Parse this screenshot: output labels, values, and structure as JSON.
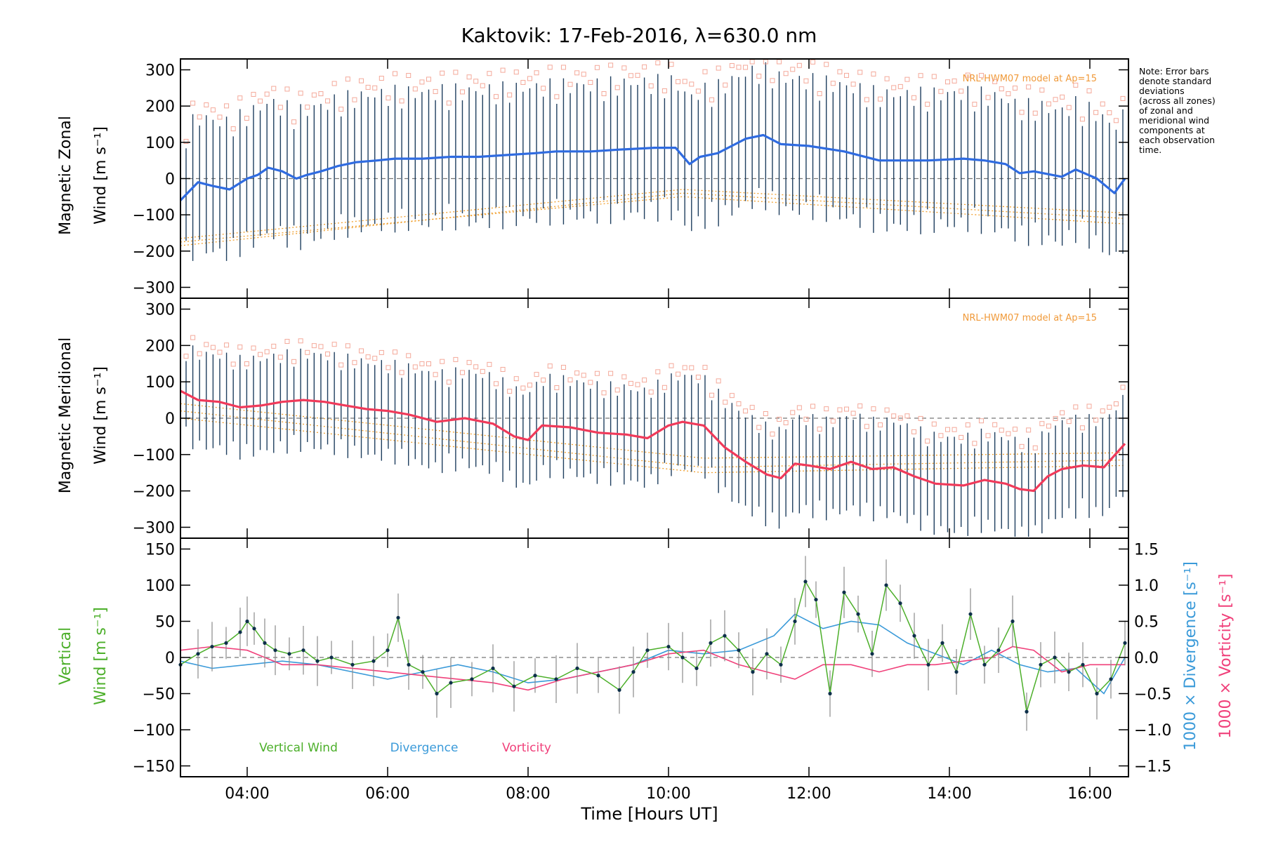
{
  "title": "Kaktovik: 17-Feb-2016, λ=630.0 nm",
  "note": [
    "Note: Error bars",
    "denote standard",
    "deviations",
    "(across all zones)",
    "of zonal and",
    "meridional wind",
    "components at",
    "each observation",
    "time."
  ],
  "model_label": "NRL-HWM07 model at Ap=15",
  "x_axis": {
    "label": "Time [Hours UT]",
    "range_hours": [
      3.05,
      16.55
    ],
    "ticks": [
      4,
      6,
      8,
      10,
      12,
      14,
      16
    ],
    "tick_labels": [
      "04:00",
      "06:00",
      "08:00",
      "10:00",
      "12:00",
      "14:00",
      "16:00"
    ]
  },
  "chart_data": [
    {
      "type": "line",
      "panel": "zonal",
      "ylabel": [
        "Magnetic Zonal",
        "Wind [m s⁻¹]"
      ],
      "ylim": [
        -330,
        330
      ],
      "yticks": [
        -300,
        -200,
        -100,
        0,
        100,
        200,
        300
      ],
      "line_color": "#2f6be0",
      "annotation": "NRL-HWM07 model at Ap=15",
      "x": [
        3.05,
        3.3,
        3.5,
        3.75,
        4.0,
        4.15,
        4.3,
        4.5,
        4.7,
        4.85,
        5.05,
        5.3,
        5.55,
        5.85,
        6.1,
        6.5,
        6.9,
        7.3,
        7.7,
        8.1,
        8.4,
        8.9,
        9.3,
        9.8,
        10.1,
        10.3,
        10.45,
        10.7,
        10.9,
        11.1,
        11.35,
        11.6,
        12.0,
        12.5,
        13.0,
        13.3,
        13.7,
        14.2,
        14.5,
        14.8,
        15.0,
        15.2,
        15.6,
        15.8,
        16.1,
        16.35,
        16.5
      ],
      "y": [
        -60,
        -10,
        -20,
        -30,
        0,
        10,
        30,
        20,
        0,
        10,
        20,
        35,
        45,
        50,
        55,
        55,
        60,
        60,
        65,
        70,
        75,
        75,
        80,
        85,
        85,
        40,
        60,
        70,
        90,
        110,
        120,
        95,
        90,
        75,
        50,
        50,
        50,
        55,
        50,
        40,
        15,
        20,
        5,
        25,
        0,
        -40,
        0
      ],
      "error": 170,
      "model": [
        {
          "x": [
            3.05,
            10.2,
            16.5
          ],
          "y": [
            -185,
            -40,
            -110
          ]
        },
        {
          "x": [
            3.05,
            10.2,
            16.5
          ],
          "y": [
            -175,
            -50,
            -125
          ]
        },
        {
          "x": [
            3.05,
            10.2,
            16.5
          ],
          "y": [
            -165,
            -30,
            -95
          ]
        }
      ]
    },
    {
      "type": "line",
      "panel": "meridional",
      "ylabel": [
        "Magnetic Meridional",
        "Wind [m s⁻¹]"
      ],
      "ylim": [
        -330,
        330
      ],
      "yticks": [
        -300,
        -200,
        -100,
        0,
        100,
        200,
        300
      ],
      "line_color": "#f03a5a",
      "annotation": "NRL-HWM07 model at Ap=15",
      "x": [
        3.05,
        3.3,
        3.6,
        3.9,
        4.2,
        4.5,
        4.8,
        5.1,
        5.4,
        5.7,
        6.0,
        6.3,
        6.7,
        7.1,
        7.5,
        7.8,
        8.0,
        8.2,
        8.6,
        9.0,
        9.4,
        9.7,
        10.0,
        10.2,
        10.5,
        10.8,
        11.1,
        11.4,
        11.6,
        11.8,
        12.0,
        12.3,
        12.6,
        12.9,
        13.2,
        13.5,
        13.8,
        14.2,
        14.5,
        14.8,
        15.0,
        15.2,
        15.4,
        15.6,
        15.9,
        16.2,
        16.5
      ],
      "y": [
        75,
        50,
        45,
        30,
        35,
        45,
        50,
        45,
        35,
        25,
        20,
        10,
        -10,
        0,
        -15,
        -50,
        -60,
        -20,
        -25,
        -40,
        -45,
        -55,
        -20,
        -10,
        -20,
        -80,
        -120,
        -155,
        -165,
        -125,
        -130,
        -140,
        -120,
        -140,
        -135,
        -160,
        -180,
        -185,
        -170,
        -180,
        -195,
        -200,
        -160,
        -140,
        -130,
        -135,
        -70
      ],
      "error": 120,
      "model": [
        {
          "x": [
            3.05,
            10.5,
            16.5
          ],
          "y": [
            40,
            -110,
            -95
          ]
        },
        {
          "x": [
            3.05,
            10.5,
            16.5
          ],
          "y": [
            20,
            -135,
            -115
          ]
        },
        {
          "x": [
            3.05,
            10.5,
            16.5
          ],
          "y": [
            0,
            -150,
            -130
          ]
        }
      ]
    },
    {
      "type": "line",
      "panel": "vertical",
      "ylabel": [
        "Vertical",
        "Wind [m s⁻¹]"
      ],
      "ylim": [
        -165,
        165
      ],
      "yticks": [
        -150,
        -100,
        -50,
        0,
        50,
        100,
        150
      ],
      "right_axis": {
        "ylabel_divergence": "1000 × Divergence [s⁻¹]",
        "ylabel_vorticity": "1000 × Vorticity [s⁻¹]",
        "ylim": [
          -1.65,
          1.65
        ],
        "ticks": [
          -1.5,
          -1.0,
          -0.5,
          0.0,
          0.5,
          1.0,
          1.5
        ],
        "tick_labels": [
          "−1.5",
          "−1.0",
          "−0.5",
          "0.0",
          "0.5",
          "1.0",
          "1.5"
        ]
      },
      "legend": [
        {
          "label": "Vertical Wind",
          "color": "#4caf2a"
        },
        {
          "label": "Divergence",
          "color": "#3a9ad9"
        },
        {
          "label": "Vorticity",
          "color": "#f0407a"
        }
      ],
      "series": [
        {
          "name": "Vertical Wind",
          "color": "#4caf2a",
          "x": [
            3.05,
            3.3,
            3.5,
            3.7,
            3.9,
            4.0,
            4.1,
            4.25,
            4.4,
            4.6,
            4.8,
            5.0,
            5.2,
            5.5,
            5.8,
            6.0,
            6.15,
            6.3,
            6.5,
            6.7,
            6.9,
            7.2,
            7.5,
            7.8,
            8.1,
            8.4,
            8.7,
            9.0,
            9.3,
            9.5,
            9.7,
            10.0,
            10.2,
            10.4,
            10.6,
            10.8,
            11.0,
            11.2,
            11.4,
            11.6,
            11.8,
            11.95,
            12.1,
            12.3,
            12.5,
            12.7,
            12.9,
            13.1,
            13.3,
            13.5,
            13.7,
            13.9,
            14.1,
            14.3,
            14.5,
            14.7,
            14.9,
            15.1,
            15.3,
            15.5,
            15.7,
            15.9,
            16.1,
            16.3,
            16.5
          ],
          "y": [
            -10,
            5,
            15,
            20,
            35,
            50,
            40,
            20,
            10,
            5,
            10,
            -5,
            0,
            -10,
            -5,
            10,
            55,
            -10,
            -20,
            -50,
            -35,
            -30,
            -15,
            -40,
            -25,
            -30,
            -15,
            -25,
            -45,
            -20,
            10,
            15,
            0,
            -15,
            20,
            30,
            10,
            -20,
            5,
            -10,
            50,
            105,
            80,
            -50,
            90,
            60,
            5,
            100,
            75,
            30,
            -10,
            20,
            -20,
            60,
            -10,
            10,
            50,
            -75,
            -10,
            0,
            -20,
            -10,
            -50,
            -30,
            20
          ]
        },
        {
          "name": "Divergence",
          "color": "#3a9ad9",
          "x": [
            3.05,
            3.5,
            4.0,
            4.5,
            5.0,
            5.5,
            6.0,
            6.5,
            7.0,
            7.5,
            8.0,
            8.5,
            9.0,
            9.5,
            10.0,
            10.5,
            11.0,
            11.5,
            11.8,
            12.2,
            12.6,
            13.0,
            13.4,
            13.8,
            14.2,
            14.6,
            15.0,
            15.4,
            15.8,
            16.2,
            16.5
          ],
          "y": [
            -0.05,
            -0.15,
            -0.1,
            -0.05,
            -0.1,
            -0.2,
            -0.3,
            -0.2,
            -0.1,
            -0.2,
            -0.35,
            -0.3,
            -0.2,
            -0.1,
            0.1,
            0.05,
            0.1,
            0.3,
            0.6,
            0.4,
            0.5,
            0.45,
            0.2,
            0.05,
            -0.1,
            0.1,
            -0.1,
            -0.2,
            -0.15,
            -0.5,
            0.0
          ]
        },
        {
          "name": "Vorticity",
          "color": "#f0407a",
          "x": [
            3.05,
            3.5,
            4.0,
            4.5,
            5.0,
            5.5,
            6.0,
            6.5,
            7.0,
            7.5,
            8.0,
            8.5,
            9.0,
            9.5,
            10.0,
            10.5,
            11.0,
            11.4,
            11.8,
            12.2,
            12.6,
            13.0,
            13.4,
            13.8,
            14.2,
            14.6,
            14.9,
            15.2,
            15.6,
            16.0,
            16.5
          ],
          "y": [
            0.1,
            0.15,
            0.1,
            -0.1,
            -0.1,
            -0.15,
            -0.2,
            -0.25,
            -0.3,
            -0.35,
            -0.45,
            -0.3,
            -0.2,
            -0.1,
            0.05,
            0.1,
            -0.1,
            -0.2,
            -0.3,
            -0.1,
            -0.1,
            -0.2,
            -0.1,
            -0.1,
            -0.05,
            0.0,
            0.15,
            0.1,
            -0.2,
            -0.1,
            -0.1
          ]
        }
      ]
    }
  ]
}
